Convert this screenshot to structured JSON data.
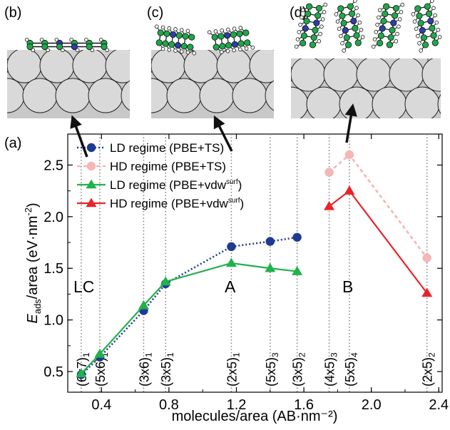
{
  "panel_labels": {
    "a": "(a)",
    "b": "(b)",
    "c": "(c)",
    "d": "(d)"
  },
  "region_labels": {
    "lc": "LC",
    "a": "A",
    "b": "B"
  },
  "colors": {
    "ld_ts": "#1f3a93",
    "hd_ts": "#f4b6b6",
    "ld_vdw": "#22b14c",
    "hd_vdw": "#e8242a",
    "substrate": "#d9d9d9",
    "carbon": "#1ea84a",
    "nitrogen": "#2b3fa8"
  },
  "chart_data": {
    "type": "line",
    "xlabel": "molecules/area (AB·nm⁻²)",
    "ylabel_parts": {
      "e": "E",
      "sub": "ads",
      "rest": "/area (eV·nm",
      "sup": "-2",
      "close": ")"
    },
    "xlim": [
      0.2,
      2.42
    ],
    "ylim": [
      0.3,
      2.8
    ],
    "xticks": [
      0.4,
      0.8,
      1.2,
      1.6,
      2.0,
      2.4
    ],
    "xtick_labels": [
      "0.4",
      "0.8",
      "1.2",
      "1.6",
      "2.0",
      "2.4"
    ],
    "yticks": [
      0.5,
      1.0,
      1.5,
      2.0,
      2.5
    ],
    "ytick_labels": [
      "0.5",
      "1.0",
      "1.5",
      "2.0",
      "2.5"
    ],
    "grid": false,
    "legend_position": "top-left",
    "series": [
      {
        "key": "ld_ts",
        "name": "LD regime (PBE+TS)",
        "marker": "circle",
        "dash": "dotted",
        "x": [
          0.28,
          0.39,
          0.65,
          0.78,
          1.17,
          1.4,
          1.56
        ],
        "y": [
          0.47,
          0.64,
          1.09,
          1.35,
          1.71,
          1.76,
          1.8
        ]
      },
      {
        "key": "hd_ts",
        "name": "HD regime (PBE+TS)",
        "marker": "circle",
        "dash": "dashed",
        "x": [
          1.75,
          1.87,
          2.33
        ],
        "y": [
          2.43,
          2.6,
          1.6
        ]
      },
      {
        "key": "ld_vdw",
        "name_main": "LD regime (PBE+vdw",
        "name_sup": "surf",
        "name_close": ")",
        "marker": "triangle",
        "dash": "solid",
        "x": [
          0.28,
          0.39,
          0.65,
          0.78,
          1.17,
          1.4,
          1.56
        ],
        "y": [
          0.48,
          0.67,
          1.14,
          1.37,
          1.55,
          1.5,
          1.47
        ]
      },
      {
        "key": "hd_vdw",
        "name_main": "HD regime (PBE+vdw",
        "name_sup": "surf",
        "name_close": ")",
        "marker": "triangle",
        "dash": "solid",
        "x": [
          1.75,
          1.87,
          2.33
        ],
        "y": [
          2.1,
          2.25,
          1.26
        ]
      }
    ],
    "structures": [
      {
        "x": 0.28,
        "main": "(6x7)",
        "sub": "1"
      },
      {
        "x": 0.39,
        "main": "(5x6)",
        "sub": "1"
      },
      {
        "x": 0.65,
        "main": "(3x6)",
        "sub": "1"
      },
      {
        "x": 0.78,
        "main": "(3x5)",
        "sub": "1"
      },
      {
        "x": 1.17,
        "main": "(2x5)",
        "sub": "1"
      },
      {
        "x": 1.4,
        "main": "(5x5)",
        "sub": "3"
      },
      {
        "x": 1.56,
        "main": "(3x5)",
        "sub": "2"
      },
      {
        "x": 1.75,
        "main": "(4x5)",
        "sub": "3"
      },
      {
        "x": 1.87,
        "main": "(5x5)",
        "sub": "4"
      },
      {
        "x": 2.33,
        "main": "(2x5)",
        "sub": "2"
      }
    ]
  }
}
